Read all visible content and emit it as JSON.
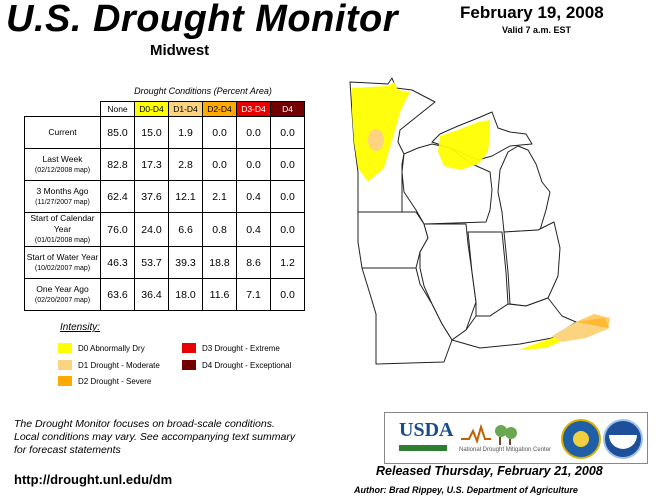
{
  "header": {
    "title": "U.S. Drought Monitor",
    "region": "Midwest",
    "date": "February 19, 2008",
    "valid": "Valid 7 a.m. EST"
  },
  "table": {
    "caption": "Drought Conditions (Percent Area)",
    "columns": [
      "None",
      "D0-D4",
      "D1-D4",
      "D2-D4",
      "D3-D4",
      "D4"
    ],
    "rows": [
      {
        "label": "Current",
        "sub": "",
        "values": [
          "85.0",
          "15.0",
          "1.9",
          "0.0",
          "0.0",
          "0.0"
        ]
      },
      {
        "label": "Last Week",
        "sub": "(02/12/2008 map)",
        "values": [
          "82.8",
          "17.3",
          "2.8",
          "0.0",
          "0.0",
          "0.0"
        ]
      },
      {
        "label": "3 Months Ago",
        "sub": "(11/27/2007 map)",
        "values": [
          "62.4",
          "37.6",
          "12.1",
          "2.1",
          "0.4",
          "0.0"
        ]
      },
      {
        "label": "Start of Calendar Year",
        "sub": "(01/01/2008 map)",
        "values": [
          "76.0",
          "24.0",
          "6.6",
          "0.8",
          "0.4",
          "0.0"
        ]
      },
      {
        "label": "Start of Water Year",
        "sub": "(10/02/2007 map)",
        "values": [
          "46.3",
          "53.7",
          "39.3",
          "18.8",
          "8.6",
          "1.2"
        ]
      },
      {
        "label": "One Year Ago",
        "sub": "(02/20/2007 map)",
        "values": [
          "63.6",
          "36.4",
          "18.0",
          "11.6",
          "7.1",
          "0.0"
        ]
      }
    ]
  },
  "legend": {
    "title": "Intensity:",
    "items": [
      {
        "label": "D0 Abnormally Dry",
        "color": "#ffff00"
      },
      {
        "label": "D1 Drought - Moderate",
        "color": "#fcd37f"
      },
      {
        "label": "D2 Drought - Severe",
        "color": "#ffaa00"
      },
      {
        "label": "D3 Drought - Extreme",
        "color": "#e60000"
      },
      {
        "label": "D4 Drought - Exceptional",
        "color": "#730000"
      }
    ]
  },
  "footer": {
    "note_1": "The Drought Monitor focuses on broad-scale conditions.",
    "note_2": "Local conditions may vary. See accompanying text summary",
    "note_3": "for forecast statements",
    "url": "http://drought.unl.edu/dm",
    "released": "Released Thursday, February 21, 2008",
    "author": "Author: Brad Rippey, U.S. Department of Agriculture"
  },
  "logos": {
    "usda": "USDA",
    "ndmc": "National Drought Mitigation Center"
  }
}
